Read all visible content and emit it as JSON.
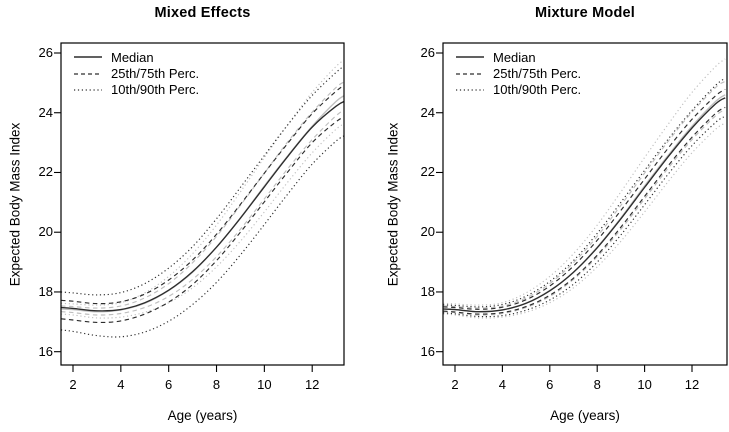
{
  "figure": {
    "background": "#ffffff",
    "text_color": "#000000",
    "axis_color": "#000000",
    "dark_curve_color": "#2d2d2d",
    "gray_curve_color": "#bfbfbf"
  },
  "chart_data": [
    {
      "type": "line",
      "title": "Mixed Effects",
      "xlabel": "Age (years)",
      "ylabel": "Expected Body Mass Index",
      "xlim": [
        1.5,
        13.4
      ],
      "ylim": [
        15.55,
        26.33
      ],
      "xticks": [
        2,
        4,
        6,
        8,
        10,
        12
      ],
      "yticks": [
        16,
        18,
        20,
        22,
        24,
        26
      ],
      "grid": false,
      "legend_position": "top-left",
      "legend": [
        {
          "label": "Median",
          "style": "solid"
        },
        {
          "label": "25th/75th Perc.",
          "style": "dashed"
        },
        {
          "label": "10th/90th Perc.",
          "style": "dotted"
        }
      ],
      "x": [
        1.5,
        2,
        3,
        4,
        5,
        6,
        7,
        8,
        9,
        10,
        11,
        12,
        13,
        13.4
      ],
      "series": [
        {
          "name": "90th percentile",
          "style": "dotted",
          "values": [
            18.0,
            17.97,
            17.9,
            17.98,
            18.28,
            18.8,
            19.52,
            20.45,
            21.5,
            22.57,
            23.62,
            24.58,
            25.35,
            25.6
          ]
        },
        {
          "name": "75th percentile",
          "style": "dashed",
          "values": [
            17.72,
            17.69,
            17.61,
            17.67,
            17.93,
            18.4,
            19.07,
            19.93,
            20.93,
            21.98,
            23.0,
            23.97,
            24.72,
            24.95
          ]
        },
        {
          "name": "Median",
          "style": "solid",
          "values": [
            17.48,
            17.45,
            17.37,
            17.41,
            17.64,
            18.06,
            18.68,
            19.5,
            20.47,
            21.52,
            22.56,
            23.52,
            24.22,
            24.4
          ]
        },
        {
          "name": "25th percentile",
          "style": "dashed",
          "values": [
            17.1,
            17.06,
            16.98,
            17.03,
            17.26,
            17.66,
            18.25,
            19.05,
            20.0,
            21.02,
            22.04,
            23.0,
            23.7,
            23.88
          ]
        },
        {
          "name": "10th percentile",
          "style": "dotted",
          "values": [
            16.73,
            16.68,
            16.54,
            16.5,
            16.66,
            17.02,
            17.58,
            18.32,
            19.24,
            20.26,
            21.3,
            22.28,
            23.05,
            23.25
          ]
        }
      ]
    },
    {
      "type": "line",
      "title": "Mixture Model",
      "xlabel": "Age (years)",
      "ylabel": "Expected Body Mass Index",
      "xlim": [
        1.5,
        13.45
      ],
      "ylim": [
        15.55,
        26.33
      ],
      "xticks": [
        2,
        4,
        6,
        8,
        10,
        12
      ],
      "yticks": [
        16,
        18,
        20,
        22,
        24,
        26
      ],
      "grid": false,
      "legend_position": "top-left",
      "legend": [
        {
          "label": "Median",
          "style": "solid"
        },
        {
          "label": "25th/75th Perc.",
          "style": "dashed"
        },
        {
          "label": "10th/90th Perc.",
          "style": "dotted"
        }
      ],
      "x": [
        1.5,
        2,
        3,
        4,
        5,
        6,
        7,
        8,
        9,
        10,
        11,
        12,
        13,
        13.4
      ],
      "series": [
        {
          "name": "90th percentile",
          "style": "dotted",
          "values": [
            17.57,
            17.55,
            17.5,
            17.58,
            17.86,
            18.35,
            19.05,
            19.96,
            21.0,
            22.07,
            23.12,
            24.08,
            24.92,
            25.15
          ]
        },
        {
          "name": "75th percentile",
          "style": "dashed",
          "values": [
            17.5,
            17.48,
            17.42,
            17.49,
            17.74,
            18.2,
            18.87,
            19.73,
            20.73,
            21.78,
            22.82,
            23.78,
            24.57,
            24.78
          ]
        },
        {
          "name": "Median",
          "style": "solid",
          "values": [
            17.43,
            17.41,
            17.34,
            17.4,
            17.62,
            18.04,
            18.66,
            19.48,
            20.45,
            21.5,
            22.53,
            23.49,
            24.3,
            24.5
          ]
        },
        {
          "name": "25th percentile",
          "style": "dashed",
          "values": [
            17.36,
            17.33,
            17.26,
            17.31,
            17.51,
            17.89,
            18.46,
            19.23,
            20.17,
            21.2,
            22.23,
            23.18,
            23.98,
            24.18
          ]
        },
        {
          "name": "10th percentile",
          "style": "dotted",
          "values": [
            17.3,
            17.27,
            17.18,
            17.21,
            17.39,
            17.73,
            18.26,
            19.0,
            19.91,
            20.92,
            21.95,
            22.9,
            23.68,
            23.88
          ]
        }
      ]
    }
  ],
  "gray_reference_curves": {
    "note": "light gray percentile curves drawn in both panels",
    "x": [
      1.5,
      2,
      3,
      4,
      5,
      6,
      7,
      8,
      9,
      10,
      11,
      12,
      13,
      13.4
    ],
    "series": [
      {
        "name": "90th percentile (gray)",
        "style": "dotted",
        "values": [
          17.62,
          17.6,
          17.56,
          17.64,
          17.97,
          18.52,
          19.28,
          20.24,
          21.35,
          22.5,
          23.62,
          24.68,
          25.55,
          25.8
        ]
      },
      {
        "name": "75th percentile (gray)",
        "style": "dashed",
        "values": [
          17.53,
          17.51,
          17.46,
          17.53,
          17.8,
          18.28,
          18.98,
          19.86,
          20.9,
          21.98,
          23.05,
          24.02,
          24.85,
          25.05
        ]
      },
      {
        "name": "Median (gray)",
        "style": "solid",
        "values": [
          17.43,
          17.41,
          17.34,
          17.4,
          17.62,
          18.05,
          18.66,
          19.5,
          20.48,
          21.55,
          22.58,
          23.55,
          24.38,
          24.6
        ]
      },
      {
        "name": "25th percentile (gray)",
        "style": "dashed",
        "values": [
          17.34,
          17.31,
          17.23,
          17.28,
          17.48,
          17.85,
          18.42,
          19.18,
          20.1,
          21.12,
          22.15,
          23.1,
          23.9,
          24.1
        ]
      },
      {
        "name": "10th percentile (gray)",
        "style": "dotted",
        "values": [
          17.26,
          17.23,
          17.13,
          17.16,
          17.32,
          17.64,
          18.14,
          18.84,
          19.7,
          20.68,
          21.7,
          22.66,
          23.45,
          23.65
        ]
      }
    ]
  }
}
